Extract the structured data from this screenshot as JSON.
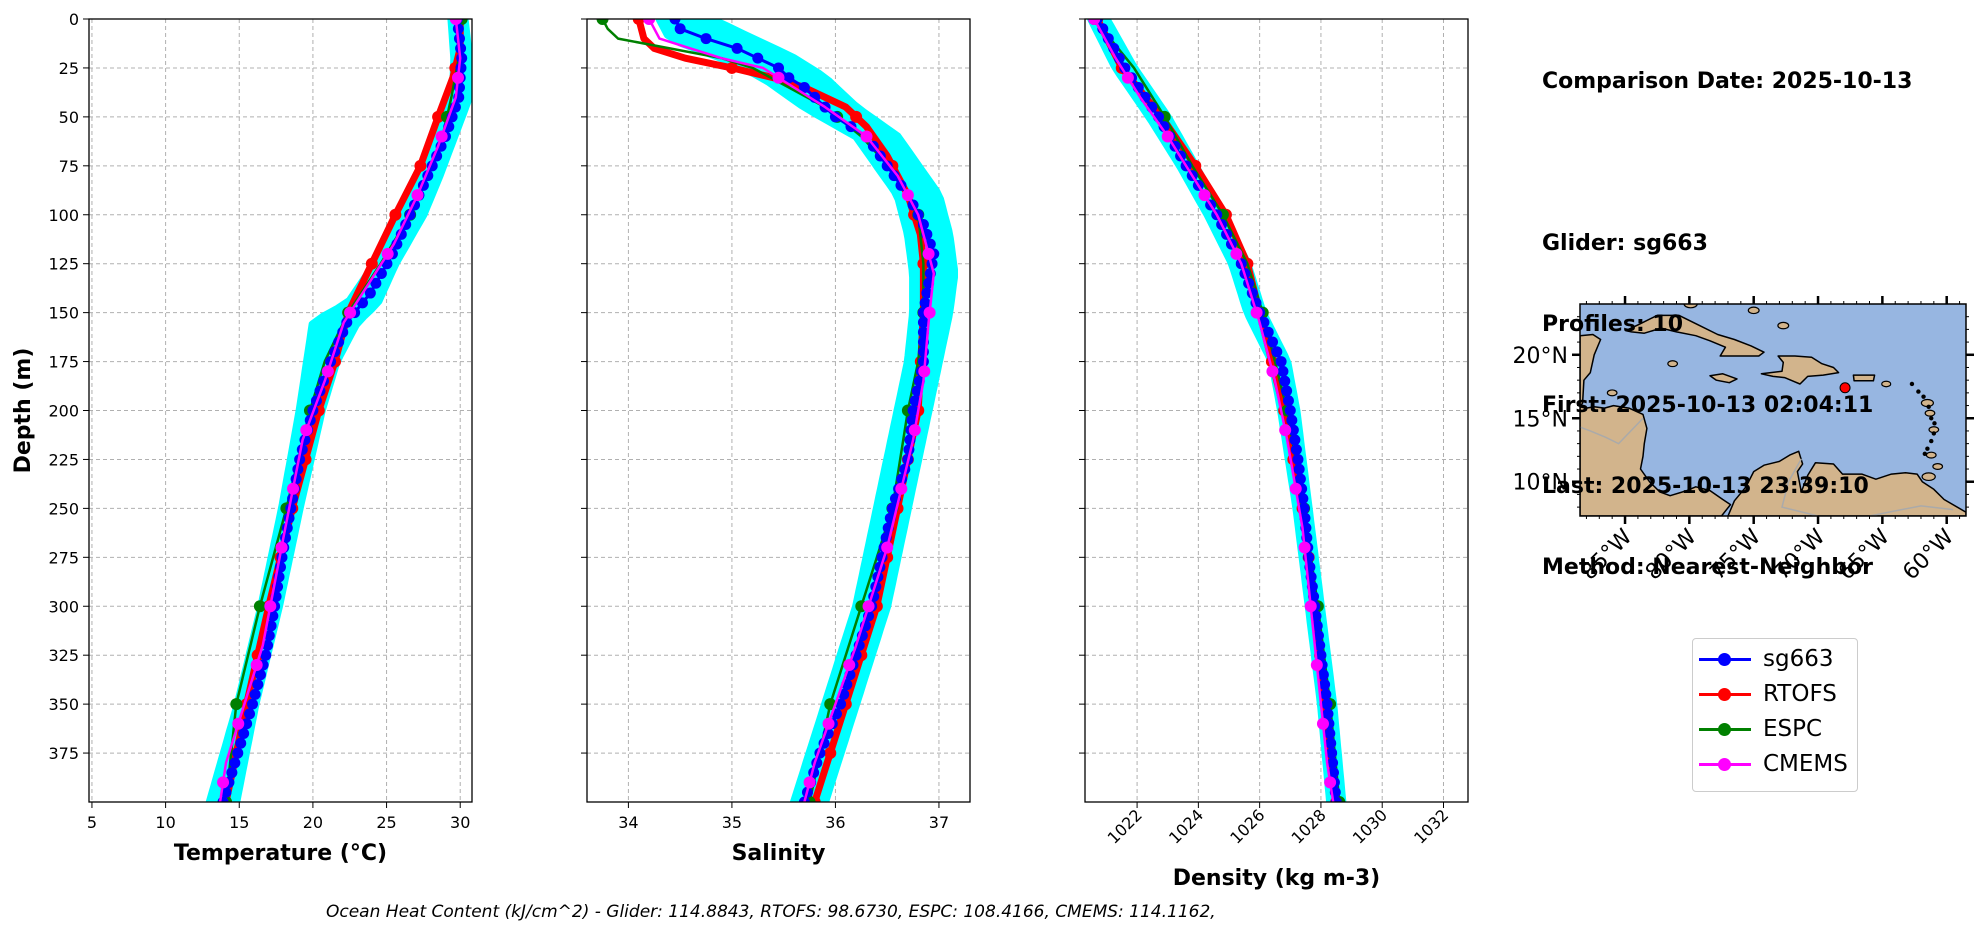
{
  "info": {
    "comparison_date": "Comparison Date: 2025-10-13",
    "glider": "Glider: sg663",
    "profiles": "Profiles: 10",
    "first": "First: 2025-10-13 02:04:11",
    "last": "Last: 2025-10-13 23:39:10",
    "method": "Method: Nearest-Neighbor"
  },
  "footnote": "Ocean Heat Content (kJ/cm^2) - Glider: 114.8843,  RTOFS: 98.6730,  ESPC: 108.4166,  CMEMS: 114.1162,",
  "legend": [
    {
      "label": "sg663",
      "color": "#0000ff"
    },
    {
      "label": "RTOFS",
      "color": "#ff0000"
    },
    {
      "label": "ESPC",
      "color": "#008000"
    },
    {
      "label": "CMEMS",
      "color": "#ff00ff"
    }
  ],
  "colors": {
    "glider_envelope": "#00ffff",
    "land": "#d2b48c",
    "ocean": "#97b6e1"
  },
  "chart_data": [
    {
      "type": "line",
      "xlabel": "Temperature (°C)",
      "ylabel": "Depth (m)",
      "xlim": [
        4.8,
        30.8
      ],
      "ylim": [
        400,
        0
      ],
      "xticks": [
        5,
        10,
        15,
        20,
        25,
        30
      ],
      "yticks": [
        0,
        25,
        50,
        75,
        100,
        125,
        150,
        175,
        200,
        225,
        250,
        275,
        300,
        325,
        350,
        375
      ],
      "grid": true,
      "envelope": {
        "depth": [
          0,
          20,
          40,
          60,
          80,
          100,
          125,
          145,
          155,
          175,
          200,
          250,
          300,
          350,
          400
        ],
        "min": [
          29.4,
          29.6,
          29.5,
          28.3,
          27.2,
          25.8,
          24.2,
          22.4,
          20.0,
          19.6,
          19.1,
          17.9,
          16.5,
          14.9,
          13.0
        ],
        "max": [
          30.3,
          30.6,
          30.6,
          29.6,
          28.6,
          27.5,
          25.6,
          24.4,
          23.0,
          21.6,
          20.6,
          19.1,
          17.7,
          16.1,
          14.8
        ]
      },
      "series": [
        {
          "name": "sg663",
          "color": "#0000ff",
          "depth": [
            0,
            20,
            40,
            60,
            80,
            100,
            120,
            140,
            155,
            175,
            200,
            225,
            250,
            275,
            300,
            325,
            350,
            375,
            400
          ],
          "values": [
            29.8,
            30.1,
            29.9,
            29.0,
            27.8,
            26.6,
            25.4,
            23.9,
            22.3,
            21.2,
            20.0,
            19.1,
            18.5,
            17.9,
            17.4,
            16.8,
            15.9,
            14.9,
            13.9
          ]
        },
        {
          "name": "RTOFS",
          "color": "#ff0000",
          "depth": [
            0,
            15,
            30,
            50,
            75,
            100,
            125,
            150,
            175,
            200,
            250,
            300,
            350,
            400
          ],
          "values": [
            30.0,
            30.0,
            29.5,
            28.5,
            27.3,
            25.6,
            24.0,
            22.4,
            21.5,
            20.4,
            18.6,
            17.0,
            15.5,
            14.1
          ]
        },
        {
          "name": "ESPC",
          "color": "#008000",
          "depth": [
            0,
            20,
            40,
            60,
            80,
            100,
            125,
            150,
            175,
            200,
            250,
            300,
            350,
            400
          ],
          "values": [
            30.1,
            29.9,
            29.4,
            28.8,
            27.8,
            26.6,
            24.6,
            22.4,
            20.8,
            19.8,
            18.2,
            16.4,
            14.8,
            14.1
          ]
        },
        {
          "name": "CMEMS",
          "color": "#ff00ff",
          "depth": [
            0,
            20,
            40,
            65,
            90,
            115,
            135,
            155,
            185,
            215,
            265,
            320,
            380,
            400
          ],
          "values": [
            29.7,
            30.0,
            29.7,
            28.5,
            27.1,
            25.5,
            23.8,
            22.1,
            20.8,
            19.3,
            18.0,
            16.6,
            14.1,
            13.7
          ]
        }
      ]
    },
    {
      "type": "line",
      "xlabel": "Salinity",
      "ylabel": "",
      "xlim": [
        33.6,
        37.3
      ],
      "ylim": [
        400,
        0
      ],
      "xticks": [
        34,
        35,
        36,
        37
      ],
      "yticks": [
        0,
        25,
        50,
        75,
        100,
        125,
        150,
        175,
        200,
        225,
        250,
        275,
        300,
        325,
        350,
        375
      ],
      "grid": true,
      "envelope": {
        "depth": [
          0,
          10,
          20,
          30,
          45,
          60,
          75,
          90,
          110,
          130,
          150,
          175,
          200,
          250,
          300,
          350,
          400
        ],
        "min": [
          34.3,
          34.4,
          34.9,
          35.3,
          35.7,
          36.2,
          36.4,
          36.6,
          36.7,
          36.75,
          36.75,
          36.7,
          36.6,
          36.4,
          36.2,
          35.9,
          35.6
        ],
        "max": [
          34.8,
          35.2,
          35.6,
          35.9,
          36.2,
          36.6,
          36.8,
          37.0,
          37.1,
          37.15,
          37.1,
          37.0,
          36.9,
          36.7,
          36.5,
          36.2,
          35.9
        ]
      },
      "series": [
        {
          "name": "sg663",
          "color": "#0000ff",
          "depth": [
            0,
            5,
            10,
            15,
            20,
            25,
            30,
            35,
            40,
            50,
            60,
            75,
            90,
            105,
            120,
            135,
            150,
            175,
            200,
            225,
            250,
            275,
            300,
            325,
            350,
            375,
            400
          ],
          "values": [
            34.45,
            34.5,
            34.75,
            35.05,
            35.25,
            35.45,
            35.55,
            35.7,
            35.8,
            36.0,
            36.3,
            36.5,
            36.7,
            36.85,
            36.95,
            36.9,
            36.85,
            36.85,
            36.75,
            36.7,
            36.55,
            36.45,
            36.35,
            36.2,
            36.05,
            35.85,
            35.7
          ]
        },
        {
          "name": "RTOFS",
          "color": "#ff0000",
          "depth": [
            0,
            10,
            15,
            20,
            25,
            30,
            35,
            40,
            45,
            55,
            70,
            90,
            110,
            125,
            150,
            200,
            250,
            300,
            350,
            400
          ],
          "values": [
            34.1,
            34.15,
            34.25,
            34.55,
            35.0,
            35.4,
            35.7,
            35.9,
            36.1,
            36.3,
            36.5,
            36.7,
            36.82,
            36.85,
            36.85,
            36.8,
            36.6,
            36.4,
            36.1,
            35.8
          ]
        },
        {
          "name": "ESPC",
          "color": "#008000",
          "depth": [
            0,
            5,
            10,
            15,
            20,
            25,
            35,
            45,
            60,
            80,
            100,
            125,
            150,
            175,
            200,
            250,
            300,
            350,
            400
          ],
          "values": [
            33.75,
            33.8,
            33.9,
            34.4,
            34.9,
            35.2,
            35.55,
            35.9,
            36.25,
            36.6,
            36.8,
            36.85,
            36.85,
            36.8,
            36.7,
            36.55,
            36.25,
            35.95,
            35.75
          ]
        },
        {
          "name": "CMEMS",
          "color": "#ff00ff",
          "depth": [
            0,
            10,
            15,
            20,
            25,
            35,
            45,
            60,
            80,
            100,
            130,
            155,
            185,
            215,
            270,
            320,
            380,
            400
          ],
          "values": [
            34.2,
            34.3,
            34.6,
            34.9,
            35.3,
            35.6,
            35.9,
            36.3,
            36.6,
            36.8,
            36.95,
            36.9,
            36.85,
            36.75,
            36.5,
            36.2,
            35.8,
            35.7
          ]
        }
      ]
    },
    {
      "type": "line",
      "xlabel": "Density (kg m-3)",
      "ylabel": "",
      "xlim": [
        1020.3,
        1032.8
      ],
      "ylim": [
        400,
        0
      ],
      "xticks": [
        1022,
        1024,
        1026,
        1028,
        1030,
        1032
      ],
      "yticks": [
        0,
        25,
        50,
        75,
        100,
        125,
        150,
        175,
        200,
        225,
        250,
        275,
        300,
        325,
        350,
        375
      ],
      "grid": true,
      "envelope": {
        "depth": [
          0,
          25,
          50,
          75,
          100,
          125,
          150,
          175,
          200,
          250,
          300,
          350,
          400
        ],
        "min": [
          1020.5,
          1021.3,
          1022.4,
          1023.4,
          1024.3,
          1025.1,
          1025.6,
          1026.4,
          1026.7,
          1027.2,
          1027.6,
          1028.0,
          1028.3
        ],
        "max": [
          1021.0,
          1021.9,
          1023.0,
          1023.9,
          1024.8,
          1025.6,
          1026.1,
          1026.9,
          1027.2,
          1027.6,
          1028.0,
          1028.4,
          1028.7
        ]
      },
      "series": [
        {
          "name": "sg663",
          "color": "#0000ff",
          "depth": [
            0,
            25,
            50,
            75,
            100,
            125,
            150,
            175,
            200,
            225,
            250,
            275,
            300,
            325,
            350,
            375,
            400
          ],
          "values": [
            1020.7,
            1021.6,
            1022.7,
            1023.6,
            1024.6,
            1025.4,
            1026.0,
            1026.7,
            1027.0,
            1027.25,
            1027.45,
            1027.6,
            1027.8,
            1028.0,
            1028.2,
            1028.35,
            1028.5
          ]
        },
        {
          "name": "RTOFS",
          "color": "#ff0000",
          "depth": [
            0,
            25,
            50,
            75,
            100,
            125,
            150,
            175,
            200,
            250,
            300,
            350,
            400
          ],
          "values": [
            1020.7,
            1021.5,
            1022.8,
            1023.9,
            1024.9,
            1025.6,
            1026.0,
            1026.4,
            1026.8,
            1027.4,
            1027.8,
            1028.15,
            1028.5
          ]
        },
        {
          "name": "ESPC",
          "color": "#008000",
          "depth": [
            0,
            25,
            50,
            75,
            100,
            125,
            150,
            175,
            200,
            250,
            300,
            350,
            400
          ],
          "values": [
            1020.6,
            1021.9,
            1022.9,
            1023.8,
            1024.8,
            1025.6,
            1026.1,
            1026.5,
            1026.9,
            1027.45,
            1027.9,
            1028.3,
            1028.6
          ]
        },
        {
          "name": "CMEMS",
          "color": "#ff00ff",
          "depth": [
            0,
            20,
            40,
            60,
            80,
            100,
            125,
            155,
            185,
            215,
            260,
            320,
            380,
            400
          ],
          "values": [
            1020.6,
            1021.3,
            1022.1,
            1023.0,
            1023.8,
            1024.6,
            1025.4,
            1026.0,
            1026.5,
            1026.9,
            1027.4,
            1027.8,
            1028.2,
            1028.4
          ]
        }
      ]
    },
    {
      "type": "map",
      "lat_ticks": [
        "20°N",
        "15°N",
        "10°N"
      ],
      "lon_ticks": [
        "85°W",
        "80°W",
        "75°W",
        "70°W",
        "65°W",
        "60°W"
      ],
      "marker": {
        "lon": -67.9,
        "lat": 17.4
      }
    }
  ]
}
